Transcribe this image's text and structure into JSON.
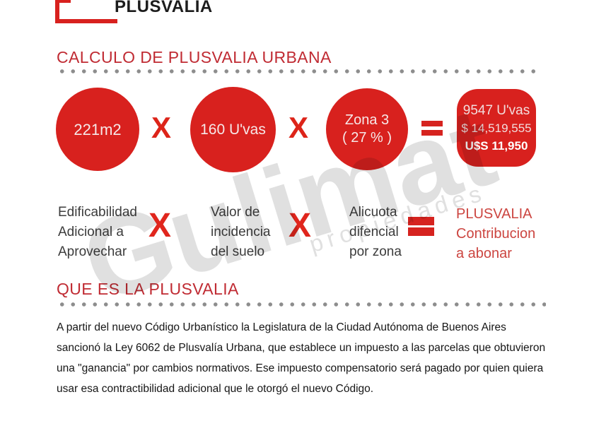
{
  "brand": {
    "name": "PLUSVALIA"
  },
  "colors": {
    "circle_red": "#d8211e",
    "heading_red": "#c02b33",
    "operator_red": "#dd2419",
    "equals_red": "#d6231f",
    "legend_result_red": "#cc4540",
    "label_gray": "#3c3c3c",
    "dot_gray": "#8d8d8d",
    "watermark_gray": "#e0e0e0"
  },
  "calc_section": {
    "title": "CALCULO DE PLUSVALIA URBANA",
    "circles": [
      {
        "lines": [
          "221m2"
        ]
      },
      {
        "lines": [
          "160 U'vas"
        ]
      },
      {
        "lines": [
          "Zona 3",
          "( 27 % )"
        ]
      }
    ],
    "operators": [
      "X",
      "X",
      "="
    ],
    "result": {
      "lines": [
        "9547 U'vas",
        "$ 14,519,555",
        "U$S 11,950"
      ]
    },
    "legend_labels": [
      {
        "lines": [
          "Edificabilidad",
          "Adicional a",
          "Aprovechar"
        ]
      },
      {
        "lines": [
          "Valor de",
          "incidencia",
          "del suelo"
        ]
      },
      {
        "lines": [
          "Alicuota",
          "difencial",
          "por zona"
        ]
      }
    ],
    "legend_operators": [
      "X",
      "X",
      "="
    ],
    "legend_result": {
      "lines": [
        "PLUSVALIA",
        "Contribucion",
        "a abonar"
      ]
    }
  },
  "about_section": {
    "title": "QUE ES LA PLUSVALIA",
    "paragraph": "A partir del nuevo Código Urbanístico la Legislatura de la Ciudad Autónoma de Buenos Aires sancionó la Ley 6062 de Plusvalía Urbana, que establece un impuesto a las parcelas que obtuvieron una \"ganancia\" por cambios normativos. Ese impuesto compensatorio será pagado por quien quiera usar esa contractibilidad adicional que le otorgó el nuevo Código."
  },
  "watermark": {
    "text": "Gulimat",
    "subtext": "propiedades"
  }
}
